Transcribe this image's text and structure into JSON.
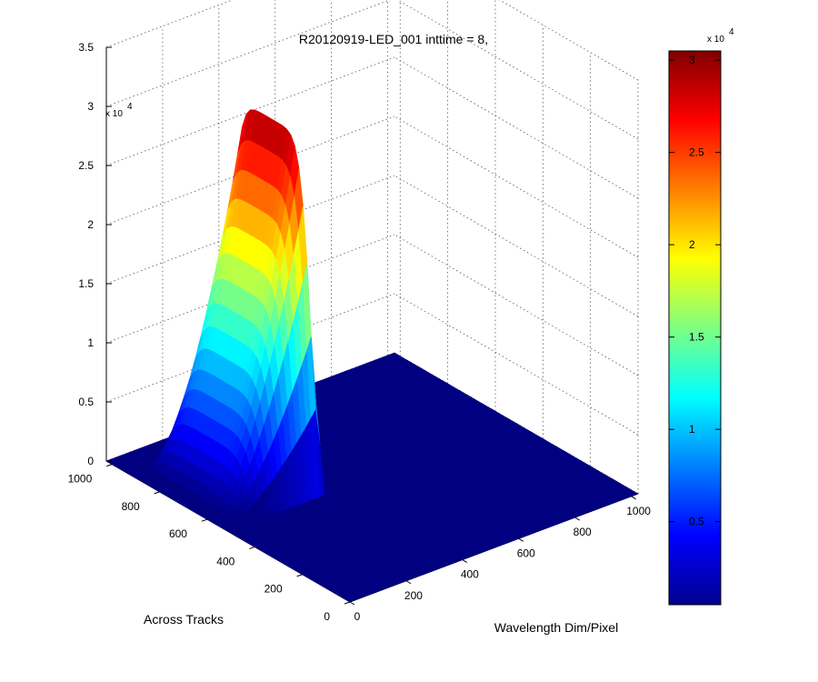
{
  "chart_data": {
    "type": "surface",
    "title": "R20120919-LED_001 inttime = 8,",
    "xlabel": "Wavelength Dim/Pixel",
    "ylabel": "Across Tracks",
    "zlabel": "",
    "xlim": [
      0,
      1024
    ],
    "ylim": [
      0,
      1024
    ],
    "zlim": [
      0,
      35000
    ],
    "x_ticks": [
      "0",
      "200",
      "400",
      "600",
      "800",
      "1000"
    ],
    "y_ticks": [
      "0",
      "200",
      "400",
      "600",
      "800",
      "1000"
    ],
    "z_ticks": [
      "0",
      "0.5",
      "1",
      "1.5",
      "2",
      "2.5",
      "3",
      "3.5"
    ],
    "z_multiplier": "x 10",
    "z_exponent": "4",
    "grid": true,
    "colormap": "jet",
    "colorbar": {
      "range": [
        500,
        30500
      ],
      "ticks": [
        "0.5",
        "1",
        "1.5",
        "2",
        "2.5",
        "3"
      ],
      "multiplier": "x 10",
      "exponent": "4"
    },
    "peak": {
      "description_values": {
        "x_start": 0,
        "x_end": 330,
        "y_center": 720,
        "y_halfwidth": 180,
        "max_value": 30500,
        "background": 0
      }
    }
  }
}
